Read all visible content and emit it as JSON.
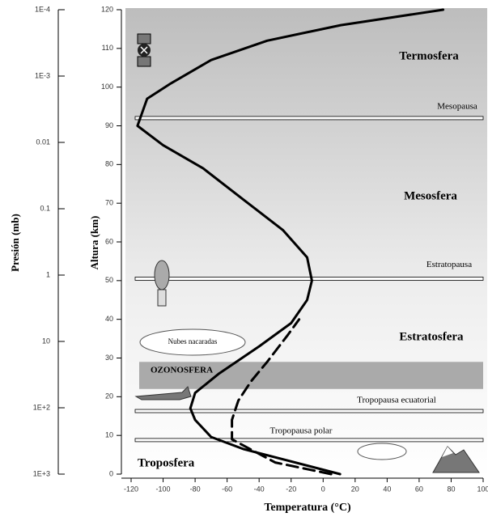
{
  "chart_data": {
    "type": "line",
    "xlabel": "Temperatura (°C)",
    "ylabel": "Altura (km)",
    "y2label": "Presión (mb)",
    "xlim": [
      -120,
      100
    ],
    "xticks": [
      -120,
      -100,
      -80,
      -60,
      -40,
      -20,
      0,
      20,
      40,
      60,
      80,
      100
    ],
    "ylim": [
      0,
      120
    ],
    "yticks": [
      0,
      10,
      20,
      30,
      40,
      50,
      60,
      70,
      80,
      90,
      100,
      110,
      120
    ],
    "y2lim": [
      1000,
      0.0001
    ],
    "y2log": true,
    "y2ticks": [
      {
        "value": 0.0001,
        "label": "1E-4"
      },
      {
        "value": 0.001,
        "label": "1E-3"
      },
      0.01,
      0.1,
      1,
      10,
      {
        "value": 100,
        "label": "1E+2"
      },
      {
        "value": 1000,
        "label": "1E+3"
      }
    ],
    "series": [
      {
        "color": "#000000",
        "dashed": false,
        "x": [
          10.6,
          -50,
          -70,
          -80,
          -83,
          -80,
          -65,
          -40,
          -20,
          -10,
          -7,
          -10,
          -25,
          -50,
          -75,
          -100,
          -116,
          -110,
          -95,
          -70,
          -35,
          11,
          75
        ],
        "values": [
          0,
          6.5,
          9.6,
          14,
          17,
          21,
          26,
          33,
          39,
          45,
          50,
          56,
          63,
          71,
          79,
          85,
          90,
          97,
          101,
          107,
          112,
          116,
          120
        ]
      },
      {
        "color": "#000000",
        "dashed": true,
        "x": [
          5,
          -30,
          -57,
          -57,
          -53,
          -45,
          -35,
          -22,
          -15
        ],
        "values": [
          0,
          3,
          9,
          14,
          19,
          24,
          29,
          36,
          40
        ]
      }
    ],
    "boundaries": [
      {
        "label": "Mesopausa",
        "altitude": 92
      },
      {
        "label": "Estratopausa",
        "altitude": 50.5
      },
      {
        "label": "Tropopausa ecuatorial",
        "altitude": 16.3
      },
      {
        "label": "Tropopausa polar",
        "altitude": 8.8
      }
    ],
    "ozone": {
      "label": "OZONOSFERA",
      "from": 22,
      "to": 29
    },
    "layers": [
      "Termosfera",
      "Mesosfera",
      "Estratosfera",
      "Troposfera"
    ],
    "cloud_label": "Nubes nacaradas"
  }
}
